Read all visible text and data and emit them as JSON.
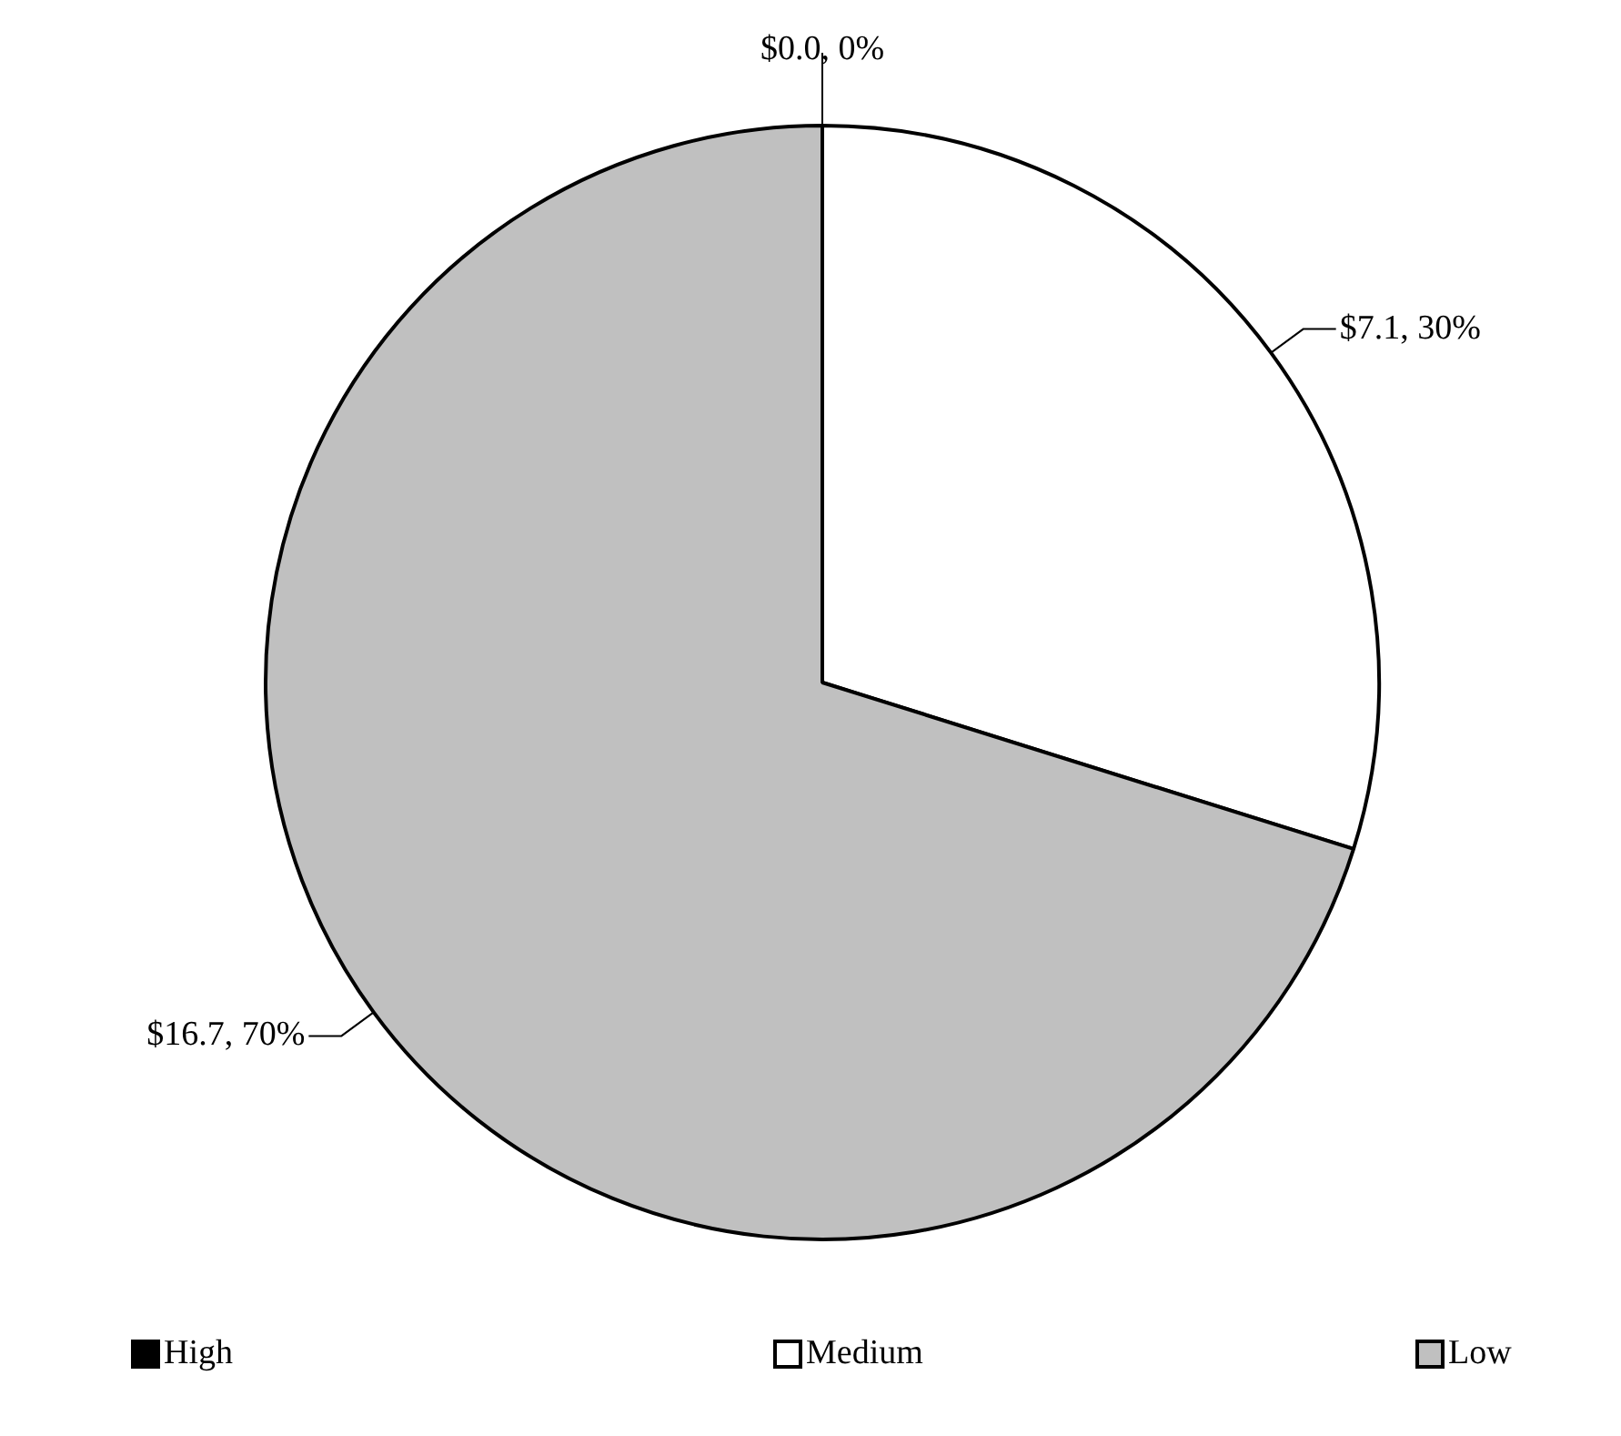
{
  "chart_data": {
    "type": "pie",
    "categories": [
      "High",
      "Medium",
      "Low"
    ],
    "values": [
      0.0,
      7.1,
      16.7
    ],
    "colors": [
      "#000000",
      "#ffffff",
      "#c0c0c0"
    ],
    "value_labels": [
      "$0.0, 0%",
      "$7.1, 30%",
      "$16.7, 70%"
    ],
    "legend": "bottom"
  }
}
